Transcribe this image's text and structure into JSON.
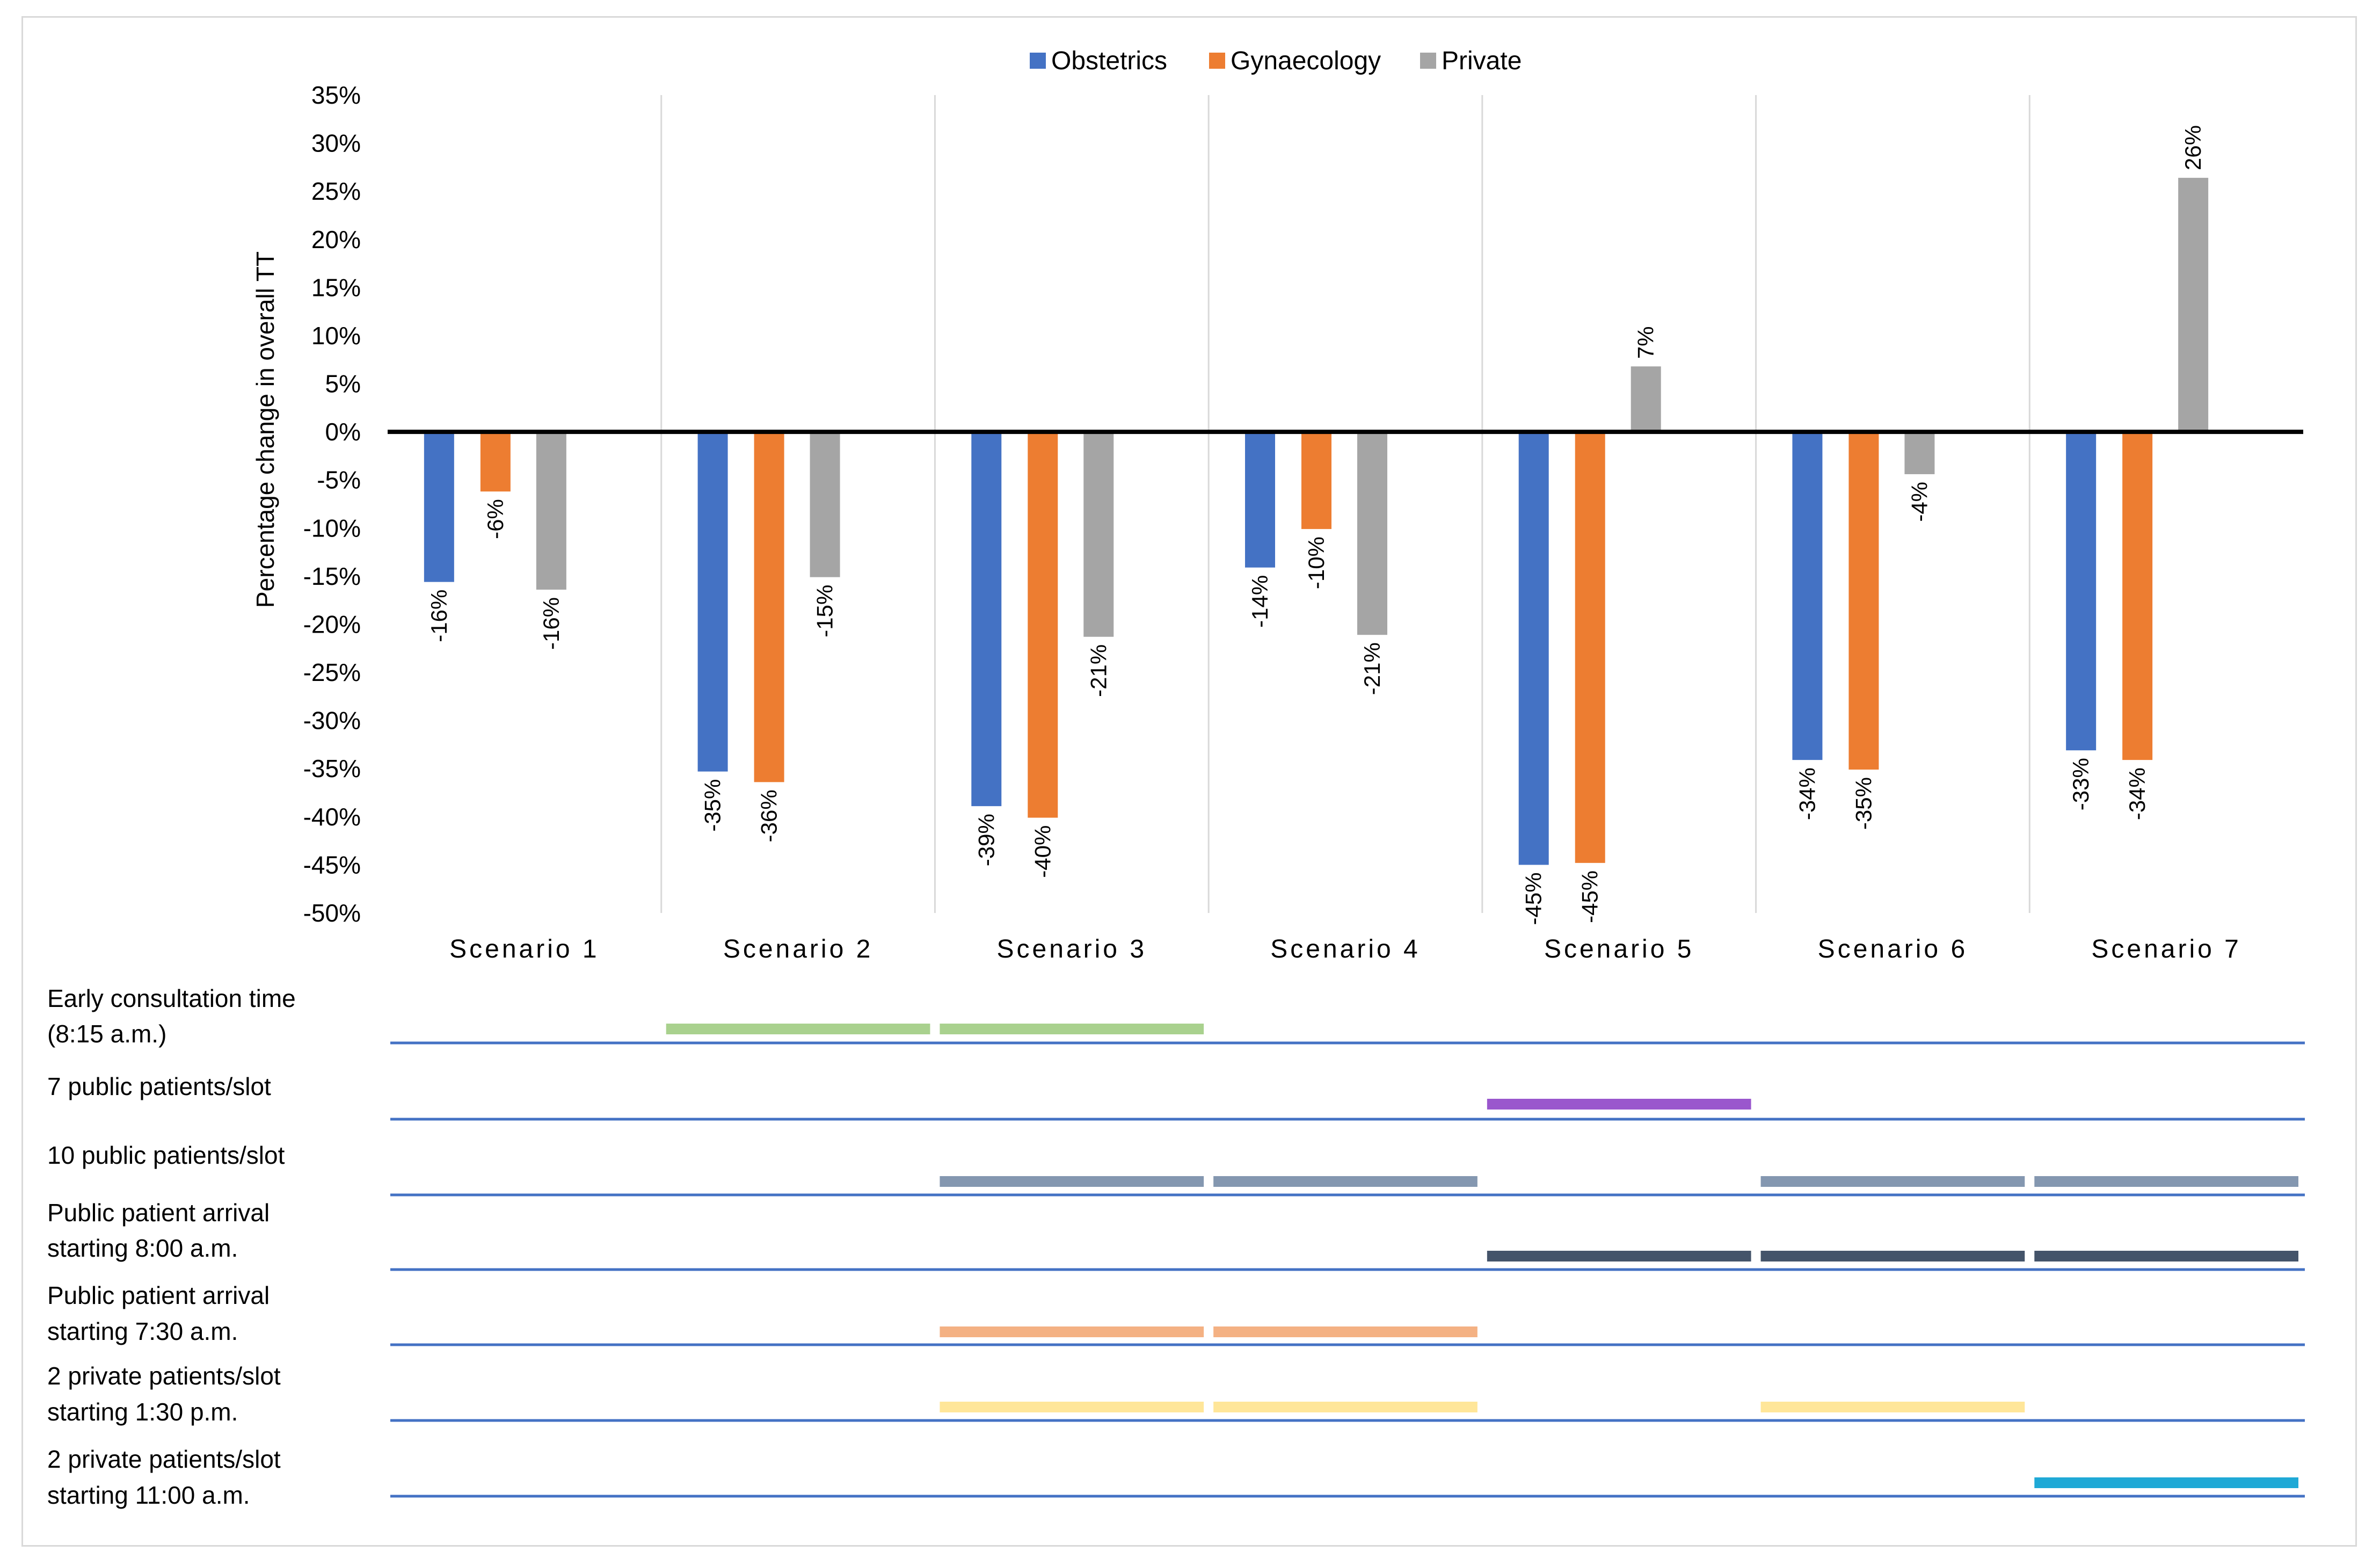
{
  "chart_data": {
    "type": "bar",
    "title": "",
    "xlabel": "",
    "ylabel": "Percentage change in overall TT",
    "ylim": [
      -50,
      35
    ],
    "yticks": [
      "35%",
      "30%",
      "25%",
      "20%",
      "15%",
      "10%",
      "5%",
      "0%",
      "-5%",
      "-10%",
      "-15%",
      "-20%",
      "-25%",
      "-30%",
      "-35%",
      "-40%",
      "-45%",
      "-50%"
    ],
    "categories": [
      "Scenario 1",
      "Scenario 2",
      "Scenario 3",
      "Scenario 4",
      "Scenario 5",
      "Scenario 6",
      "Scenario 7"
    ],
    "series": [
      {
        "name": "Obstetrics",
        "color": "#4472C4",
        "values": [
          -15.6,
          -35.3,
          -38.9,
          -14.1,
          -45.0,
          -34.1,
          -33.1
        ],
        "labels": [
          "-16%",
          "-35%",
          "-39%",
          "-14%",
          "-45%",
          "-34%",
          "-33%"
        ]
      },
      {
        "name": "Gynaecology",
        "color": "#ED7D31",
        "values": [
          -6.2,
          -36.4,
          -40.1,
          -10.1,
          -44.8,
          -35.1,
          -34.1
        ],
        "labels": [
          "-6%",
          "-36%",
          "-40%",
          "-10%",
          "-45%",
          "-35%",
          "-34%"
        ]
      },
      {
        "name": "Private",
        "color": "#A5A5A5",
        "values": [
          -16.4,
          -15.1,
          -21.3,
          -21.1,
          6.8,
          -4.4,
          26.4
        ],
        "labels": [
          "-16%",
          "-15%",
          "-21%",
          "-21%",
          "7%",
          "-4%",
          "26%"
        ]
      }
    ],
    "legend_position": "top-center",
    "grid": "vertical separators between categories",
    "timeline": {
      "rows": [
        {
          "label_lines": [
            "Early consultation time",
            "(8:15 a.m.)"
          ],
          "color": "#A9D18E",
          "scenarios": [
            2,
            3
          ]
        },
        {
          "label_lines": [
            "7 public patients/slot"
          ],
          "color": "#9A57CD",
          "scenarios": [
            5
          ]
        },
        {
          "label_lines": [
            "10 public patients/slot"
          ],
          "color": "#8497B0",
          "scenarios": [
            3,
            4,
            6,
            7
          ]
        },
        {
          "label_lines": [
            "Public patient arrival",
            "starting 8:00 a.m."
          ],
          "color": "#44546A",
          "scenarios": [
            5,
            6,
            7
          ]
        },
        {
          "label_lines": [
            "Public patient arrival",
            "starting 7:30 a.m."
          ],
          "color": "#F4B183",
          "scenarios": [
            3,
            4
          ]
        },
        {
          "label_lines": [
            "2 private patients/slot",
            "starting 1:30 p.m."
          ],
          "color": "#FFE699",
          "scenarios": [
            3,
            4,
            6
          ]
        },
        {
          "label_lines": [
            "2 private patients/slot",
            "starting 11:00 a.m."
          ],
          "color": "#1FA9D6",
          "scenarios": [
            7
          ]
        }
      ]
    }
  }
}
